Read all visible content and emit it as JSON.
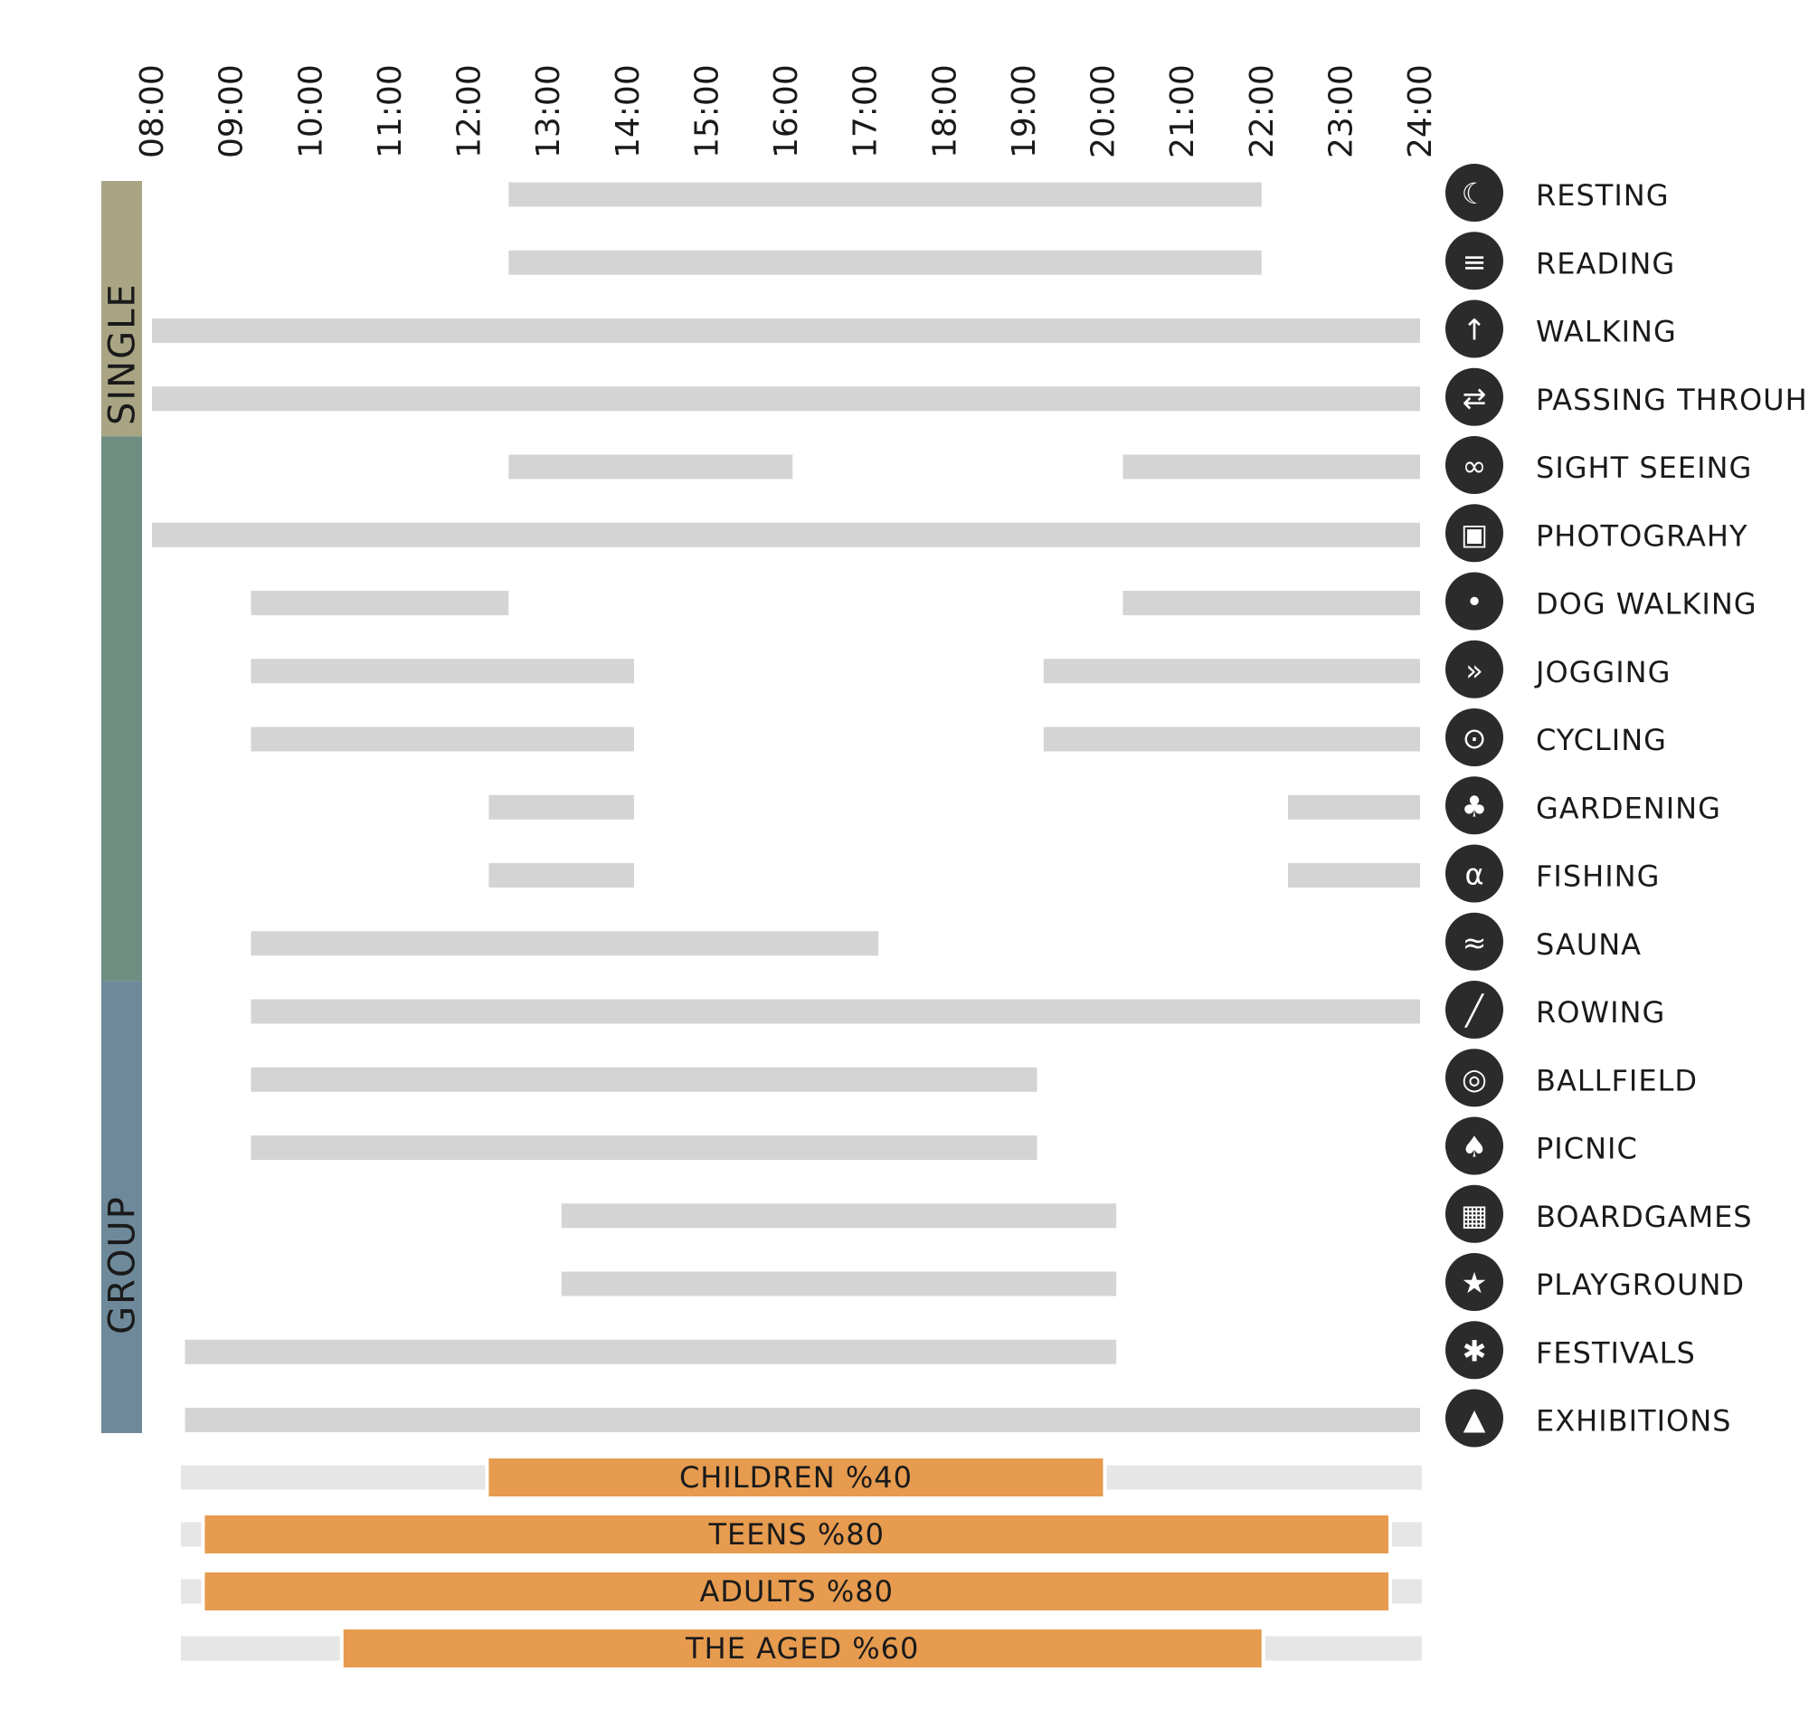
{
  "chart_data": {
    "type": "bar",
    "subtype": "timeline",
    "title": "",
    "xlabel": "",
    "ylabel": "",
    "x_range": [
      "08:00",
      "24:00"
    ],
    "ticks": [
      "08:00",
      "09:00",
      "10:00",
      "11:00",
      "12:00",
      "13:00",
      "14:00",
      "15:00",
      "16:00",
      "17:00",
      "18:00",
      "19:00",
      "20:00",
      "21:00",
      "22:00",
      "23:00",
      "24:00"
    ],
    "groups": [
      {
        "label": "SINGLE",
        "color": "#a9a584",
        "from": 0,
        "to": 4
      },
      {
        "label": "",
        "color": "#6f8e82",
        "from": 4,
        "to": 12
      },
      {
        "label": "GROUP",
        "color": "#6e8a9a",
        "from": 12,
        "to": 19
      }
    ],
    "activities": [
      {
        "label": "RESTING",
        "icon": "resting-icon",
        "intervals": [
          [
            "12:30",
            "22:00"
          ]
        ]
      },
      {
        "label": "READING",
        "icon": "reading-icon",
        "intervals": [
          [
            "12:30",
            "22:00"
          ]
        ]
      },
      {
        "label": "WALKING",
        "icon": "walking-icon",
        "intervals": [
          [
            "08:00",
            "24:00"
          ]
        ]
      },
      {
        "label": "PASSING THROUH",
        "icon": "passing-through-icon",
        "intervals": [
          [
            "08:00",
            "24:00"
          ]
        ]
      },
      {
        "label": "SIGHT SEEING",
        "icon": "binoculars-icon",
        "intervals": [
          [
            "12:30",
            "16:05"
          ],
          [
            "20:15",
            "24:00"
          ]
        ]
      },
      {
        "label": "PHOTOGRAHY",
        "icon": "camera-icon",
        "intervals": [
          [
            "08:00",
            "24:00"
          ]
        ]
      },
      {
        "label": "DOG WALKING",
        "icon": "dog-icon",
        "intervals": [
          [
            "09:15",
            "12:30"
          ],
          [
            "20:15",
            "24:00"
          ]
        ]
      },
      {
        "label": "JOGGING",
        "icon": "jogging-icon",
        "intervals": [
          [
            "09:15",
            "14:05"
          ],
          [
            "19:15",
            "24:00"
          ]
        ]
      },
      {
        "label": "CYCLING",
        "icon": "bicycle-icon",
        "intervals": [
          [
            "09:15",
            "14:05"
          ],
          [
            "19:15",
            "24:00"
          ]
        ]
      },
      {
        "label": "GARDENING",
        "icon": "plant-icon",
        "intervals": [
          [
            "12:15",
            "14:05"
          ],
          [
            "22:20",
            "24:00"
          ]
        ]
      },
      {
        "label": "FISHING",
        "icon": "fish-icon",
        "intervals": [
          [
            "12:15",
            "14:05"
          ],
          [
            "22:20",
            "24:00"
          ]
        ]
      },
      {
        "label": "SAUNA",
        "icon": "sauna-icon",
        "intervals": [
          [
            "09:15",
            "17:10"
          ]
        ]
      },
      {
        "label": "ROWING",
        "icon": "rowing-icon",
        "intervals": [
          [
            "09:15",
            "24:00"
          ]
        ]
      },
      {
        "label": "BALLFIELD",
        "icon": "ballfield-icon",
        "intervals": [
          [
            "09:15",
            "19:10"
          ]
        ]
      },
      {
        "label": "PICNIC",
        "icon": "tree-icon",
        "intervals": [
          [
            "09:15",
            "19:10"
          ]
        ]
      },
      {
        "label": "BOARDGAMES",
        "icon": "boardgames-icon",
        "intervals": [
          [
            "13:10",
            "20:10"
          ]
        ]
      },
      {
        "label": "PLAYGROUND",
        "icon": "playground-icon",
        "intervals": [
          [
            "13:10",
            "20:10"
          ]
        ]
      },
      {
        "label": "FESTIVALS",
        "icon": "festival-icon",
        "intervals": [
          [
            "08:25",
            "20:10"
          ]
        ]
      },
      {
        "label": "EXHIBITIONS",
        "icon": "exhibition-icon",
        "intervals": [
          [
            "08:25",
            "24:00"
          ]
        ]
      }
    ],
    "age_groups": [
      {
        "label": "CHILDREN %40",
        "start": "12:15",
        "end": "20:00"
      },
      {
        "label": "TEENS %80",
        "start": "08:40",
        "end": "24:00"
      },
      {
        "label": "ADULTS %80",
        "start": "08:40",
        "end": "24:00"
      },
      {
        "label": "THE AGED %60",
        "start": "10:25",
        "end": "22:00"
      }
    ],
    "colors": {
      "activity_bar": "#d4d4d4",
      "age_track": "#e6e6e6",
      "age_bar": "#e69b4f",
      "icon": "#2b2b2b"
    }
  }
}
